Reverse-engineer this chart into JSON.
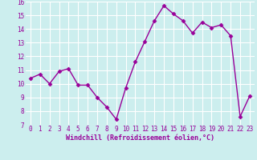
{
  "x": [
    0,
    1,
    2,
    3,
    4,
    5,
    6,
    7,
    8,
    9,
    10,
    11,
    12,
    13,
    14,
    15,
    16,
    17,
    18,
    19,
    20,
    21,
    22,
    23
  ],
  "y": [
    10.4,
    10.7,
    10.0,
    10.9,
    11.1,
    9.9,
    9.9,
    9.0,
    8.3,
    7.4,
    9.7,
    11.6,
    13.1,
    14.6,
    15.7,
    15.1,
    14.6,
    13.7,
    14.5,
    14.1,
    14.3,
    13.5,
    7.6,
    9.1
  ],
  "line_color": "#990099",
  "marker_color": "#990099",
  "bg_color": "#cceeee",
  "grid_color": "#aadddd",
  "xlabel": "Windchill (Refroidissement éolien,°C)",
  "xlabel_color": "#990099",
  "tick_color": "#990099",
  "ylim": [
    7,
    16
  ],
  "xlim_min": -0.5,
  "xlim_max": 23.5,
  "yticks": [
    7,
    8,
    9,
    10,
    11,
    12,
    13,
    14,
    15,
    16
  ],
  "xticks": [
    0,
    1,
    2,
    3,
    4,
    5,
    6,
    7,
    8,
    9,
    10,
    11,
    12,
    13,
    14,
    15,
    16,
    17,
    18,
    19,
    20,
    21,
    22,
    23
  ],
  "tick_fontsize": 5.5,
  "xlabel_fontsize": 6.0,
  "marker_size": 2.5,
  "line_width": 1.0
}
